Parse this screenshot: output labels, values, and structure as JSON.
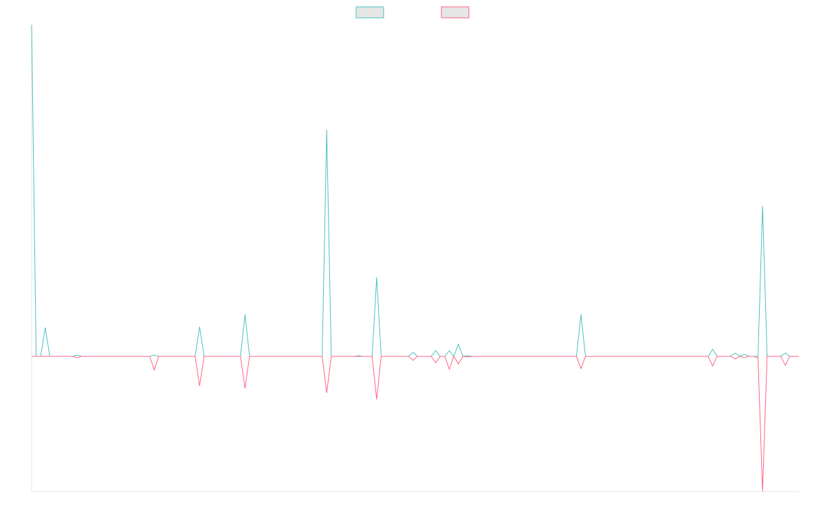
{
  "chart_data": {
    "type": "line",
    "x": [
      0,
      1,
      2,
      3,
      4,
      9,
      10,
      11,
      26,
      27,
      28,
      36,
      37,
      38,
      46,
      47,
      48,
      64,
      65,
      66,
      71,
      72,
      73,
      75,
      76,
      77,
      83,
      84,
      85,
      88,
      89,
      90,
      91,
      92,
      93,
      94,
      95,
      96,
      97,
      120,
      121,
      122,
      149,
      150,
      151,
      154,
      155,
      156,
      157,
      158,
      159,
      160,
      161,
      162,
      165,
      166,
      167,
      169
    ],
    "xlim": [
      0,
      169
    ],
    "ylim": [
      -40.8,
      100
    ],
    "series": [
      {
        "color": "#4bc0c0",
        "values": [
          100,
          0,
          0,
          8.7,
          0,
          0,
          0.4,
          0,
          0,
          0.4,
          0,
          0,
          8.9,
          0,
          0,
          12.6,
          0,
          0,
          68.3,
          0,
          0,
          0.2,
          0,
          0,
          23.8,
          0,
          0,
          1.2,
          0,
          0,
          1.7,
          0,
          0,
          1.7,
          0,
          3.7,
          0,
          0.2,
          0,
          0,
          12.6,
          0,
          0,
          2.1,
          0,
          0,
          1.0,
          0,
          0.6,
          0,
          0,
          0,
          45.3,
          0,
          0,
          1.0,
          0,
          0
        ]
      },
      {
        "color": "#ff6384",
        "values": [
          0,
          0,
          0,
          0,
          0,
          0,
          -0.4,
          0,
          0,
          -4.1,
          0,
          0,
          -8.9,
          0,
          0,
          -9.7,
          0,
          0,
          -11,
          0,
          0,
          0,
          0,
          0,
          -13,
          0,
          0,
          -1.2,
          0,
          0,
          -1.9,
          0,
          0,
          -3.9,
          0,
          -2.3,
          0,
          -0.2,
          0,
          0,
          -3.7,
          0,
          0,
          -2.9,
          0,
          0,
          -0.8,
          0,
          -0.4,
          0,
          0,
          -0.4,
          -40.8,
          0,
          0,
          -2.7,
          0,
          0
        ]
      }
    ]
  }
}
